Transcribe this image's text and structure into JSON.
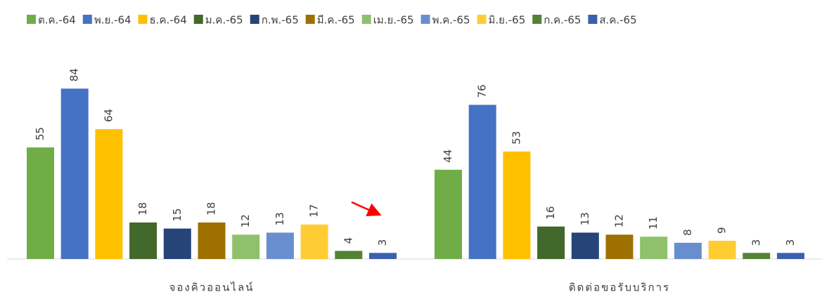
{
  "chart_data": {
    "type": "bar",
    "categories": [
      "จองคิวออนไลน์",
      "ติดต่อขอรับบริการ"
    ],
    "series": [
      {
        "name": "ต.ค.-64",
        "color": "#70ad47",
        "values": [
          55,
          44
        ]
      },
      {
        "name": "พ.ย.-64",
        "color": "#4472c4",
        "values": [
          84,
          76
        ]
      },
      {
        "name": "ธ.ค.-64",
        "color": "#ffc000",
        "values": [
          64,
          53
        ]
      },
      {
        "name": "ม.ค.-65",
        "color": "#43682b",
        "values": [
          18,
          16
        ]
      },
      {
        "name": "ก.พ.-65",
        "color": "#264478",
        "values": [
          15,
          13
        ]
      },
      {
        "name": "มี.ค.-65",
        "color": "#9e7000",
        "values": [
          18,
          12
        ]
      },
      {
        "name": "เม.ย.-65",
        "color": "#8fc16c",
        "values": [
          12,
          11
        ]
      },
      {
        "name": "พ.ค.-65",
        "color": "#698ed0",
        "values": [
          13,
          8
        ]
      },
      {
        "name": "มิ.ย.-65",
        "color": "#ffcd33",
        "values": [
          17,
          9
        ]
      },
      {
        "name": "ก.ค.-65",
        "color": "#548235",
        "values": [
          4,
          3
        ]
      },
      {
        "name": "ส.ค.-65",
        "color": "#3a5fad",
        "values": [
          3,
          3
        ]
      }
    ],
    "ylim": [
      0,
      100
    ],
    "legend": "top"
  }
}
